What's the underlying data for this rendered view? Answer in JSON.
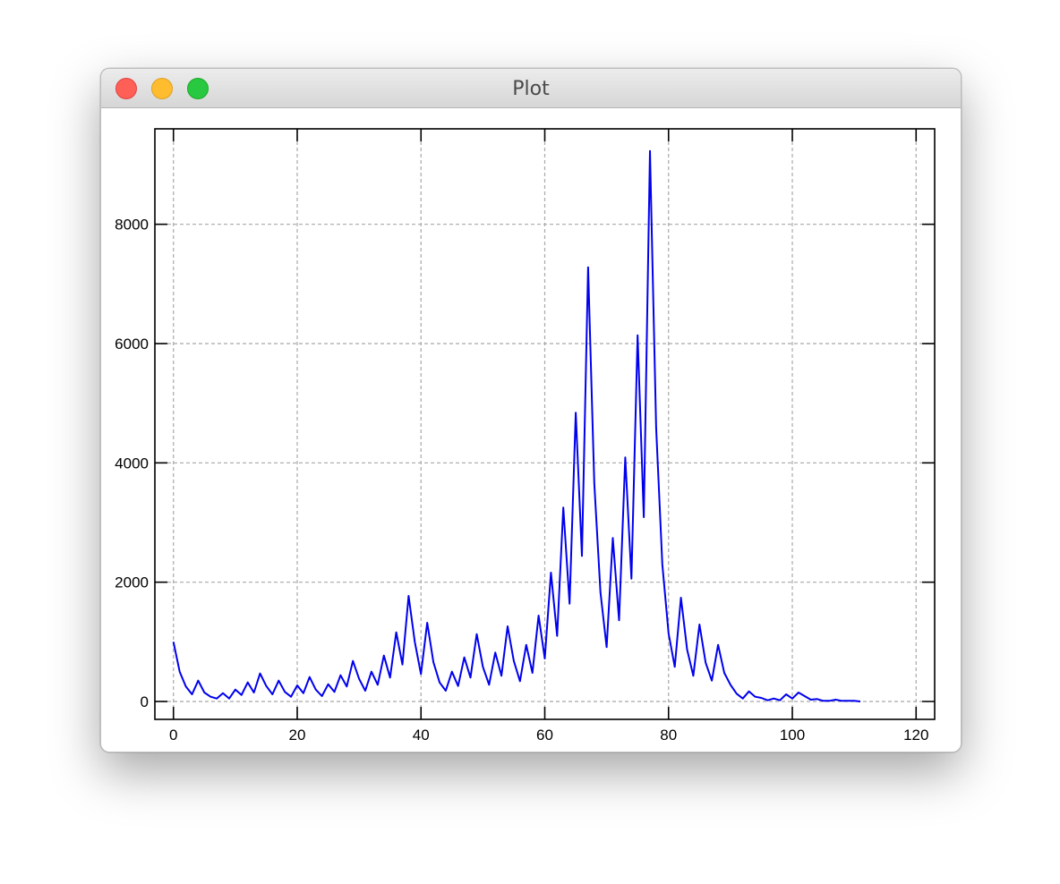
{
  "window": {
    "title": "Plot"
  },
  "chart_data": {
    "type": "line",
    "title": "",
    "xlabel": "",
    "ylabel": "",
    "xlim": [
      -3,
      123
    ],
    "ylim": [
      -300,
      9600
    ],
    "xticks": [
      0,
      20,
      40,
      60,
      80,
      100,
      120
    ],
    "yticks": [
      0,
      2000,
      4000,
      6000,
      8000
    ],
    "grid": true,
    "color": "#0000ee",
    "series": [
      {
        "x": [
          0,
          1,
          2,
          3,
          4,
          5,
          6,
          7,
          8,
          9,
          10,
          11,
          12,
          13,
          14,
          15,
          16,
          17,
          18,
          19,
          20,
          21,
          22,
          23,
          24,
          25,
          26,
          27,
          28,
          29,
          30,
          31,
          32,
          33,
          34,
          35,
          36,
          37,
          38,
          39,
          40,
          41,
          42,
          43,
          44,
          45,
          46,
          47,
          48,
          49,
          50,
          51,
          52,
          53,
          54,
          55,
          56,
          57,
          58,
          59,
          60,
          61,
          62,
          63,
          64,
          65,
          66,
          67,
          68,
          69,
          70,
          71,
          72,
          73,
          74,
          75,
          76,
          77,
          78,
          79,
          80,
          81,
          82,
          83,
          84,
          85,
          86,
          87,
          88,
          89,
          90,
          91,
          92,
          93,
          94,
          95,
          96,
          97,
          98,
          99,
          100,
          101,
          102,
          103,
          104,
          105,
          106,
          107,
          108,
          109,
          110,
          111
        ],
        "y": [
          1000,
          500,
          250,
          120,
          350,
          150,
          80,
          50,
          140,
          50,
          200,
          110,
          320,
          150,
          470,
          260,
          120,
          350,
          160,
          80,
          270,
          140,
          410,
          200,
          90,
          290,
          160,
          440,
          250,
          680,
          380,
          180,
          500,
          280,
          770,
          400,
          1160,
          620,
          1770,
          1000,
          460,
          1320,
          660,
          320,
          180,
          500,
          260,
          740,
          400,
          1130,
          580,
          280,
          820,
          430,
          1260,
          680,
          340,
          950,
          480,
          1440,
          720,
          2160,
          1100,
          3250,
          1640,
          4840,
          2440,
          7280,
          3660,
          1830,
          910,
          2740,
          1360,
          4090,
          2060,
          6140,
          3090,
          9230,
          4590,
          2300,
          1140,
          580,
          1740,
          870,
          430,
          1290,
          650,
          350,
          950,
          480,
          280,
          130,
          50,
          170,
          80,
          60,
          20,
          50,
          20,
          120,
          50,
          150,
          90,
          30,
          40,
          10,
          10,
          30,
          10,
          10,
          10,
          0
        ]
      }
    ]
  }
}
